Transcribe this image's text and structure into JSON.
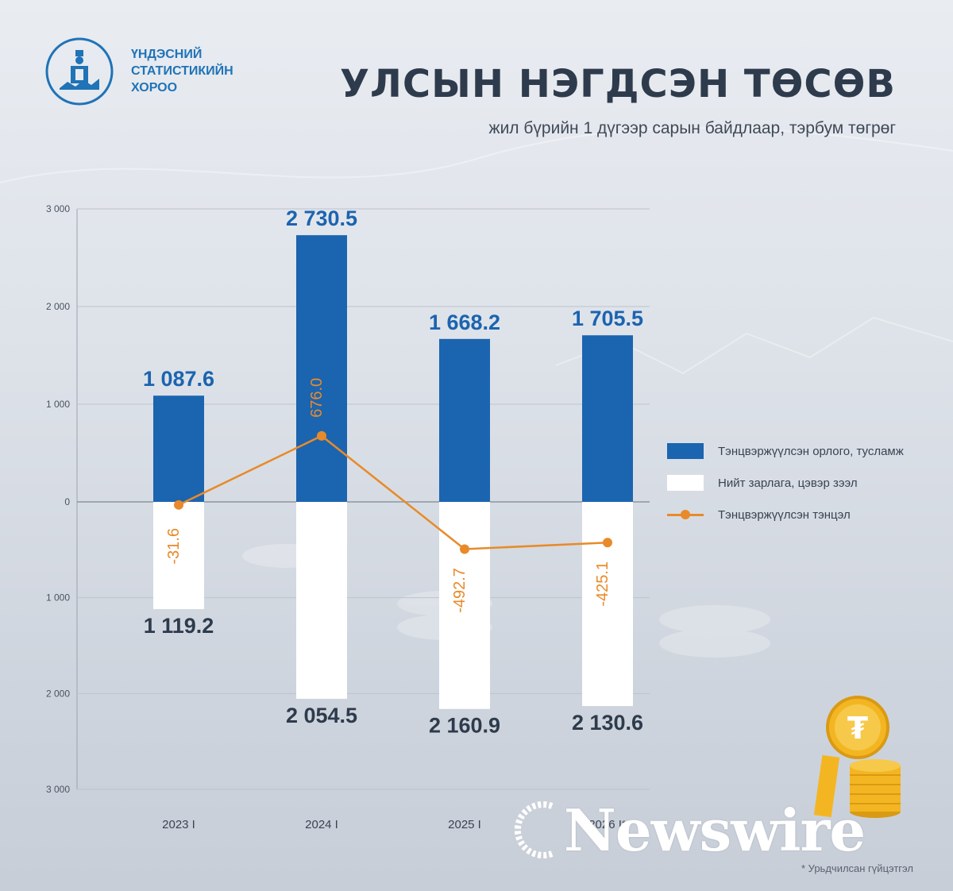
{
  "header": {
    "org_line1": "ҮНДЭСНИЙ",
    "org_line2": "СТАТИСТИКИЙН",
    "org_line3": "ХОРОО",
    "title": "УЛСЫН НЭГДСЭН ТӨСӨВ",
    "subtitle": "жил бүрийн 1 дүгээр сарын байдлаар, тэрбум төгрөг"
  },
  "legend": {
    "income": "Тэнцвэржүүлсэн орлого, тусламж",
    "expense": "Нийт зарлага, цэвэр зээл",
    "balance": "Тэнцвэржүүлсэн тэнцэл"
  },
  "footnote": "* Урьдчилсан гүйцэтгэл",
  "watermark": "Newswire",
  "colors": {
    "income": "#1b64b0",
    "expense": "#ffffff",
    "balance": "#e88a2a",
    "title": "#2e3b4c"
  },
  "chart_data": {
    "type": "bar",
    "categories": [
      "2023 I",
      "2024 I",
      "2025 I",
      "2026 I*"
    ],
    "y_ticks": [
      "3 000",
      "2 000",
      "1 000",
      "0",
      "1 000",
      "2 000",
      "3 000"
    ],
    "ylim": [
      -3000,
      3000
    ],
    "series": [
      {
        "name": "Тэнцвэржүүлсэн орлого, тусламж",
        "values": [
          1087.6,
          2730.5,
          1668.2,
          1705.5
        ],
        "labels": [
          "1 087.6",
          "2 730.5",
          "1 668.2",
          "1 705.5"
        ]
      },
      {
        "name": "Нийт зарлага, цэвэр зээл",
        "values": [
          -1119.2,
          -2054.5,
          -2160.9,
          -2130.6
        ],
        "labels": [
          "1 119.2",
          "2 054.5",
          "2 160.9",
          "2 130.6"
        ]
      },
      {
        "name": "Тэнцвэржүүлсэн тэнцэл",
        "type": "line",
        "values": [
          -31.6,
          676.0,
          -492.7,
          -425.1
        ],
        "labels": [
          "-31.6",
          "676.0",
          "-492.7",
          "-425.1"
        ]
      }
    ]
  }
}
